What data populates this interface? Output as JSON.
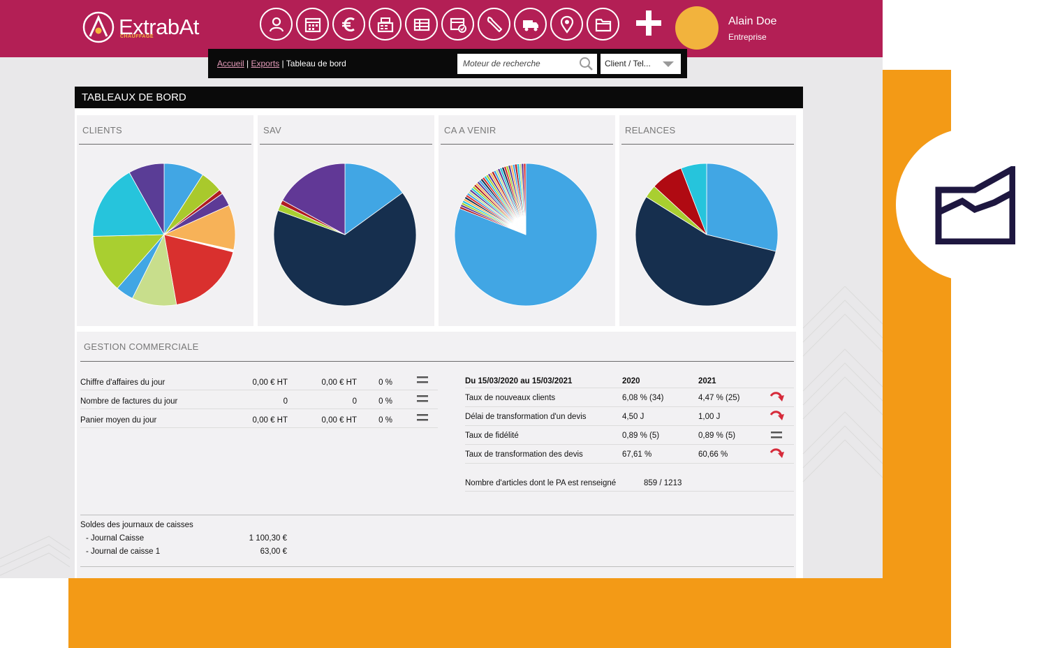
{
  "brand": {
    "name": "ExtrabAt",
    "sub": "CHAUFFAGE"
  },
  "header": {
    "nav_icons": [
      "user-icon",
      "calendar-icon",
      "euro-icon",
      "register-icon",
      "list-icon",
      "check-list-icon",
      "wrench-icon",
      "truck-icon",
      "location-pin-icon",
      "folder-icon"
    ],
    "user_name": "Alain Doe",
    "user_role": "Entreprise"
  },
  "breadcrumb": {
    "home": "Accueil",
    "exports": "Exports",
    "sep": "|",
    "current": "Tableau de bord"
  },
  "search": {
    "placeholder": "Moteur de recherche"
  },
  "select": {
    "value": "Client / Tel..."
  },
  "dashboard": {
    "title": "TABLEAUX DE BORD"
  },
  "colors": {
    "brand": "#b31f55",
    "accent": "#f39a16",
    "avatar": "#f2b33d"
  },
  "chart_data": [
    {
      "type": "pie",
      "title": "CLIENTS",
      "values": [
        9,
        5,
        1,
        3,
        10,
        0.5,
        18,
        10,
        4,
        13,
        17,
        8
      ],
      "colors": [
        "#41a6e4",
        "#a9c92c",
        "#b01c21",
        "#5d3a96",
        "#f7b258",
        "#ffffff",
        "#d9302e",
        "#c8de8c",
        "#41a6e4",
        "#a9cf30",
        "#26c4dc",
        "#5a3d96"
      ]
    },
    {
      "type": "pie",
      "title": "SAV",
      "values": [
        15,
        65.5,
        1.5,
        1,
        17
      ],
      "colors": [
        "#41a6e4",
        "#162f4e",
        "#a9cf30",
        "#b01c21",
        "#613896"
      ]
    },
    {
      "type": "pie",
      "title": "CA A VENIR",
      "values": [
        81,
        0.5,
        0.5,
        0.5,
        0.5,
        0.5,
        0.5,
        0.5,
        0.5,
        0.5,
        0.5,
        0.5,
        0.5,
        0.5,
        0.5,
        0.5,
        0.5,
        0.5,
        0.5,
        0.5,
        0.5,
        0.5,
        0.5,
        0.5,
        0.5,
        0.5,
        0.5,
        0.5,
        0.5,
        0.5,
        0.5,
        0.5,
        0.5,
        0.5,
        0.5,
        0.5,
        0.5,
        0.5,
        0.5
      ],
      "colors": [
        "#41a6e4",
        "#b01c21",
        "#5d3a96",
        "#a9cf30",
        "#26c4dc",
        "#f7b258",
        "#162f4e",
        "#d9302e",
        "#41a6e4",
        "#c8de8c",
        "#613896",
        "#26c4dc",
        "#a9cf30",
        "#b01c21",
        "#f7b258",
        "#5d3a96",
        "#41a6e4",
        "#162f4e",
        "#d9302e",
        "#26c4dc",
        "#a9cf30",
        "#5d3a96",
        "#f7b258",
        "#b01c21",
        "#41a6e4",
        "#c8de8c",
        "#613896",
        "#26c4dc",
        "#162f4e",
        "#d9302e",
        "#a9cf30",
        "#5d3a96",
        "#f7b258",
        "#41a6e4",
        "#b01c21",
        "#26c4dc",
        "#c8de8c",
        "#613896",
        "#d9302e"
      ]
    },
    {
      "type": "pie",
      "title": "RELANCES",
      "values": [
        29.5,
        56.5,
        3,
        7.5,
        6
      ],
      "colors": [
        "#41a6e4",
        "#162f4e",
        "#a9cf30",
        "#b00a12",
        "#26c4dc"
      ]
    }
  ],
  "gestion": {
    "title": "GESTION COMMERCIALE",
    "left_rows": [
      {
        "label": "Chiffre d'affaires du jour",
        "v1": "0,00 € HT",
        "v2": "0,00 € HT",
        "pct": "0 %",
        "trend": "equal-icon"
      },
      {
        "label": "Nombre de factures du jour",
        "v1": "0",
        "v2": "0",
        "pct": "0 %",
        "trend": "equal-icon"
      },
      {
        "label": "Panier moyen du jour",
        "v1": "0,00 € HT",
        "v2": "0,00 € HT",
        "pct": "0 %",
        "trend": "equal-icon"
      }
    ],
    "right_header": {
      "period": "Du 15/03/2020 au 15/03/2021",
      "y1": "2020",
      "y2": "2021"
    },
    "right_rows": [
      {
        "label": "Taux de nouveaux clients",
        "y1": "6,08 % (34)",
        "y2": "4,47 % (25)",
        "trend": "down-arrow-icon"
      },
      {
        "label": "Délai de transformation d'un devis",
        "y1": "4,50 J",
        "y2": "1,00 J",
        "trend": "down-arrow-icon"
      },
      {
        "label": "Taux de fidélité",
        "y1": "0,89 % (5)",
        "y2": "0,89 % (5)",
        "trend": "equal-icon"
      },
      {
        "label": "Taux de transformation des devis",
        "y1": "67,61 %",
        "y2": "60,66 %",
        "trend": "down-arrow-icon"
      }
    ],
    "articles": {
      "label": "Nombre d'articles dont le PA est renseigné",
      "value": "859 / 1213"
    },
    "soldes": {
      "title": "Soldes des journaux de caisses",
      "rows": [
        {
          "name": "- Journal Caisse",
          "value": "1 100,30 €"
        },
        {
          "name": "- Journal de caisse 1",
          "value": "63,00 €"
        }
      ]
    }
  }
}
